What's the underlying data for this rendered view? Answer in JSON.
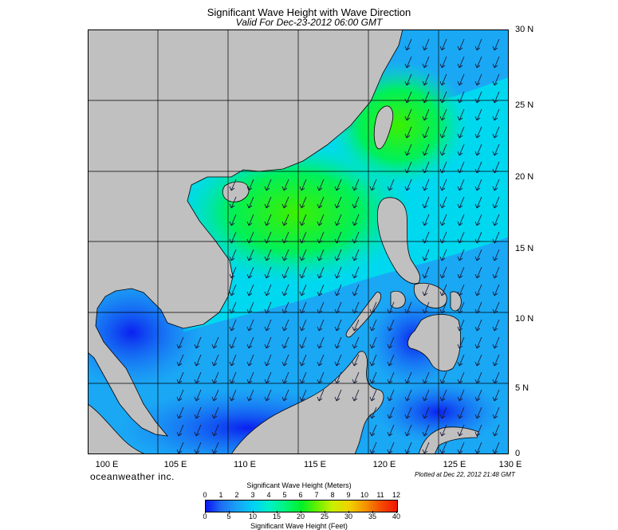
{
  "title": "Significant Wave Height with Wave Direction",
  "subtitle": "Valid For Dec-23-2012 06:00 GMT",
  "lat_labels": [
    "30 N",
    "25 N",
    "20 N",
    "15 N",
    "10 N",
    "5 N",
    "0"
  ],
  "lon_labels": [
    "100 E",
    "105 E",
    "110 E",
    "115 E",
    "120 E",
    "125 E",
    "130 E"
  ],
  "brand": "oceanweather inc.",
  "plotted": "Plotted at Dec 22, 2012 21:48 GMT",
  "colorbar": {
    "title_meters": "Significant Wave Height (Meters)",
    "title_feet": "Significant Wave Height (Feet)",
    "meters": [
      "0",
      "1",
      "2",
      "3",
      "4",
      "5",
      "6",
      "7",
      "8",
      "9",
      "10",
      "11",
      "12"
    ],
    "feet": [
      "0",
      "5",
      "10",
      "15",
      "20",
      "25",
      "30",
      "35",
      "40"
    ]
  },
  "colors": {
    "land": "#c0c0c0",
    "deep_blue": "#0a14f0",
    "mid_blue": "#1e6ef5",
    "cyan": "#00d2f5",
    "green": "#00f028",
    "arrow": "#1a1a3a"
  }
}
